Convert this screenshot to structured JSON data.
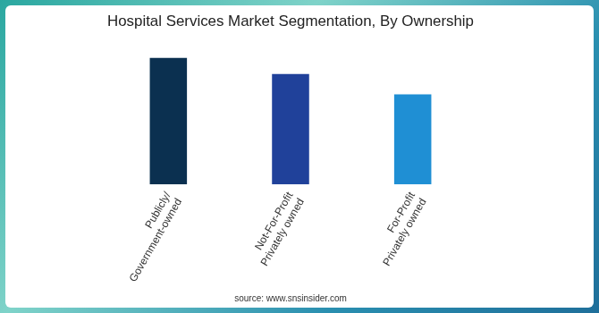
{
  "chart_data": {
    "type": "bar",
    "title": "Hospital Services Market Segmentation, By Ownership",
    "source": "source: www.snsinsider.com",
    "categories": [
      "Publicly/\nGovernment-owned",
      "Not-For-Profit\nPrivately owned",
      "For-Profit\nPrivately owned"
    ],
    "values": [
      100,
      87,
      71
    ],
    "colors": [
      "#0b3050",
      "#20419a",
      "#1f8fd4"
    ],
    "ylim": [
      0,
      100
    ],
    "grid": false,
    "tick_labels": "x"
  }
}
